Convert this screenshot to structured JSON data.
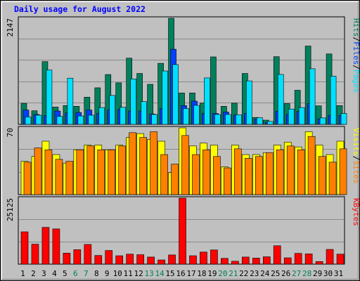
{
  "title": "Daily usage for August 2022",
  "chart_data": [
    {
      "type": "bar",
      "panel": "hits-files-pages",
      "max_label": "2147",
      "ymax": 2147,
      "legend": [
        "Pages",
        "Files",
        "Hits"
      ],
      "colors": {
        "Hits": "#00805c",
        "Files": "#0040ff",
        "Pages": "#00e0ff"
      },
      "categories": [
        "1",
        "2",
        "3",
        "4",
        "5",
        "6",
        "7",
        "8",
        "9",
        "10",
        "11",
        "12",
        "13",
        "14",
        "15",
        "16",
        "17",
        "18",
        "19",
        "20",
        "21",
        "22",
        "23",
        "24",
        "25",
        "26",
        "27",
        "28",
        "29",
        "30",
        "31"
      ],
      "series": [
        {
          "name": "Hits",
          "values": [
            425,
            275,
            1270,
            350,
            380,
            365,
            550,
            740,
            1008,
            840,
            1340,
            1030,
            810,
            1235,
            2147,
            635,
            635,
            430,
            1365,
            365,
            430,
            1030,
            140,
            85,
            1370,
            420,
            690,
            1585,
            375,
            1425,
            380
          ]
        },
        {
          "name": "Files",
          "values": [
            290,
            200,
            180,
            270,
            230,
            240,
            290,
            220,
            290,
            300,
            270,
            270,
            210,
            320,
            1520,
            380,
            470,
            220,
            220,
            250,
            190,
            220,
            110,
            40,
            265,
            200,
            260,
            420,
            110,
            180,
            180
          ]
        },
        {
          "name": "Pages",
          "values": [
            150,
            185,
            1100,
            160,
            935,
            170,
            185,
            340,
            585,
            345,
            920,
            460,
            200,
            1080,
            1210,
            320,
            385,
            940,
            200,
            200,
            195,
            880,
            135,
            60,
            1010,
            310,
            340,
            1125,
            130,
            975,
            220
          ]
        }
      ]
    },
    {
      "type": "bar",
      "panel": "visits-sites",
      "max_label": "70",
      "ymax": 70,
      "legend": [
        "Sites",
        "Visits"
      ],
      "colors": {
        "Visits": "#ffff00",
        "Sites": "#ff8000"
      },
      "categories": [
        "1",
        "2",
        "3",
        "4",
        "5",
        "6",
        "7",
        "8",
        "9",
        "10",
        "11",
        "12",
        "13",
        "14",
        "15",
        "16",
        "17",
        "18",
        "19",
        "20",
        "21",
        "22",
        "23",
        "24",
        "25",
        "26",
        "27",
        "28",
        "29",
        "30",
        "31"
      ],
      "series": [
        {
          "name": "Visits",
          "values": [
            35,
            40,
            56,
            42,
            33,
            47,
            52,
            52,
            47,
            52,
            60,
            64,
            58,
            56,
            23,
            70,
            51,
            54,
            52,
            29,
            52,
            42,
            42,
            44,
            52,
            55,
            50,
            66,
            52,
            42,
            56
          ]
        },
        {
          "name": "Sites",
          "values": [
            34,
            49,
            47,
            37,
            35,
            47,
            51,
            47,
            47,
            51,
            65,
            60,
            66,
            42,
            32,
            62,
            42,
            47,
            40,
            28,
            48,
            38,
            40,
            44,
            47,
            51,
            47,
            61,
            40,
            34,
            48
          ]
        }
      ]
    },
    {
      "type": "bar",
      "panel": "kbytes",
      "max_label": "25125",
      "ymax": 25125,
      "legend": [
        "KBytes"
      ],
      "colors": {
        "KBytes": "#ff0000"
      },
      "categories": [
        "1",
        "2",
        "3",
        "4",
        "5",
        "6",
        "7",
        "8",
        "9",
        "10",
        "11",
        "12",
        "13",
        "14",
        "15",
        "16",
        "17",
        "18",
        "19",
        "20",
        "21",
        "22",
        "23",
        "24",
        "25",
        "26",
        "27",
        "28",
        "29",
        "30",
        "31"
      ],
      "series": [
        {
          "name": "KBytes",
          "values": [
            12300,
            7600,
            14000,
            13400,
            4200,
            5500,
            7500,
            3300,
            5200,
            3200,
            3800,
            3600,
            2700,
            1600,
            3500,
            25125,
            3200,
            4600,
            5400,
            2200,
            1100,
            2700,
            2300,
            2800,
            7000,
            2400,
            4100,
            3900,
            1000,
            5600,
            3800
          ]
        }
      ]
    }
  ],
  "weekend_days": [
    "6",
    "7",
    "13",
    "14",
    "20",
    "21",
    "27",
    "28"
  ],
  "colors": {
    "day_label": "#000000",
    "weekend_label": "#00805c",
    "separator": "#000000"
  }
}
